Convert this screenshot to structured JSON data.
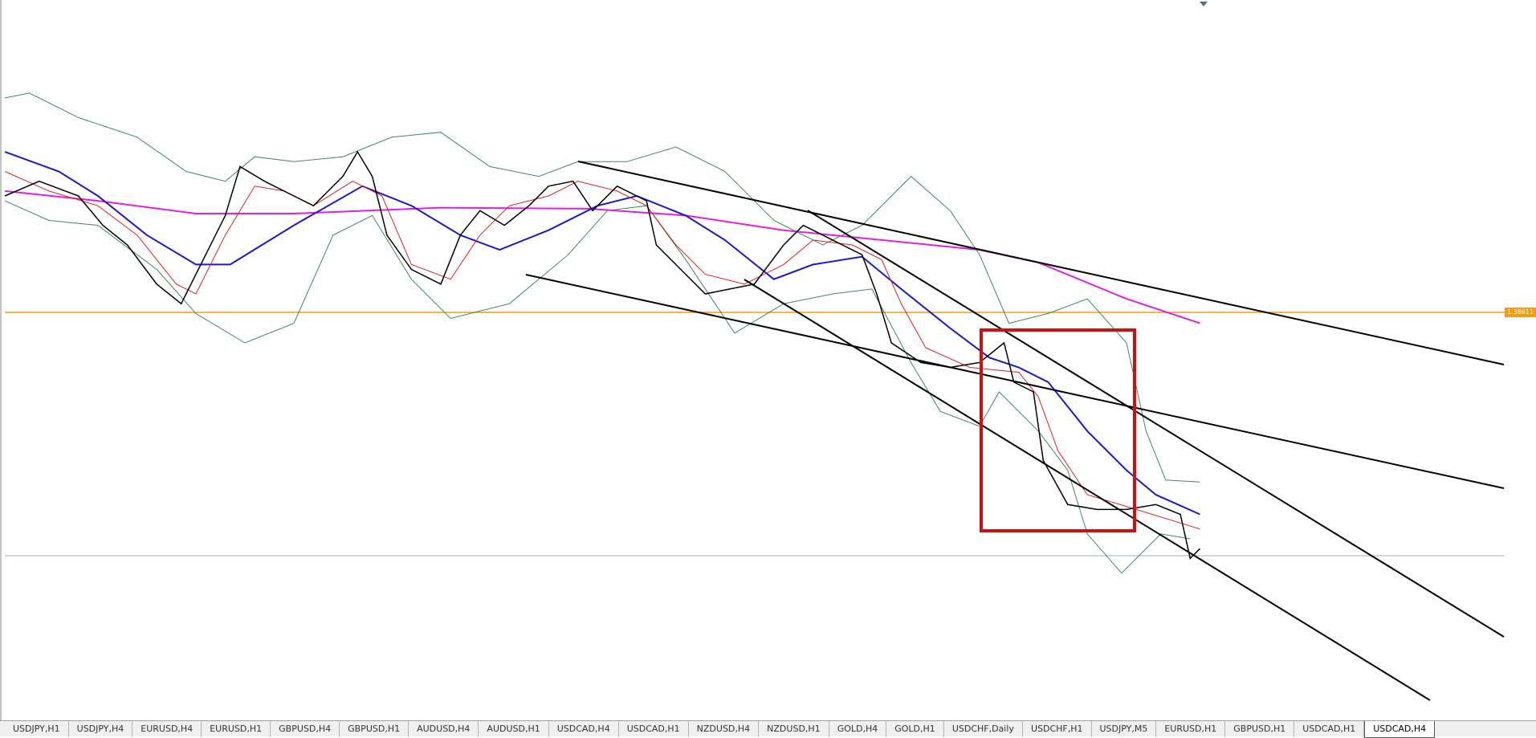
{
  "price_label": "1.38611",
  "tabs": [
    "USDJPY,H1",
    "USDJPY,H4",
    "EURUSD,H4",
    "EURUSD,H1",
    "GBPUSD,H4",
    "GBPUSD,H1",
    "AUDUSD,H4",
    "AUDUSD,H1",
    "USDCAD,H4",
    "USDCAD,H1",
    "NZDUSD,H4",
    "NZDUSD,H1",
    "GOLD,H4",
    "GOLD,H1",
    "USDCHF,Daily",
    "USDCHF,H1",
    "USDJPY,M5",
    "EURUSD,H1",
    "GBPUSD,H1",
    "USDCAD,H1",
    "USDCAD,H4"
  ]
}
